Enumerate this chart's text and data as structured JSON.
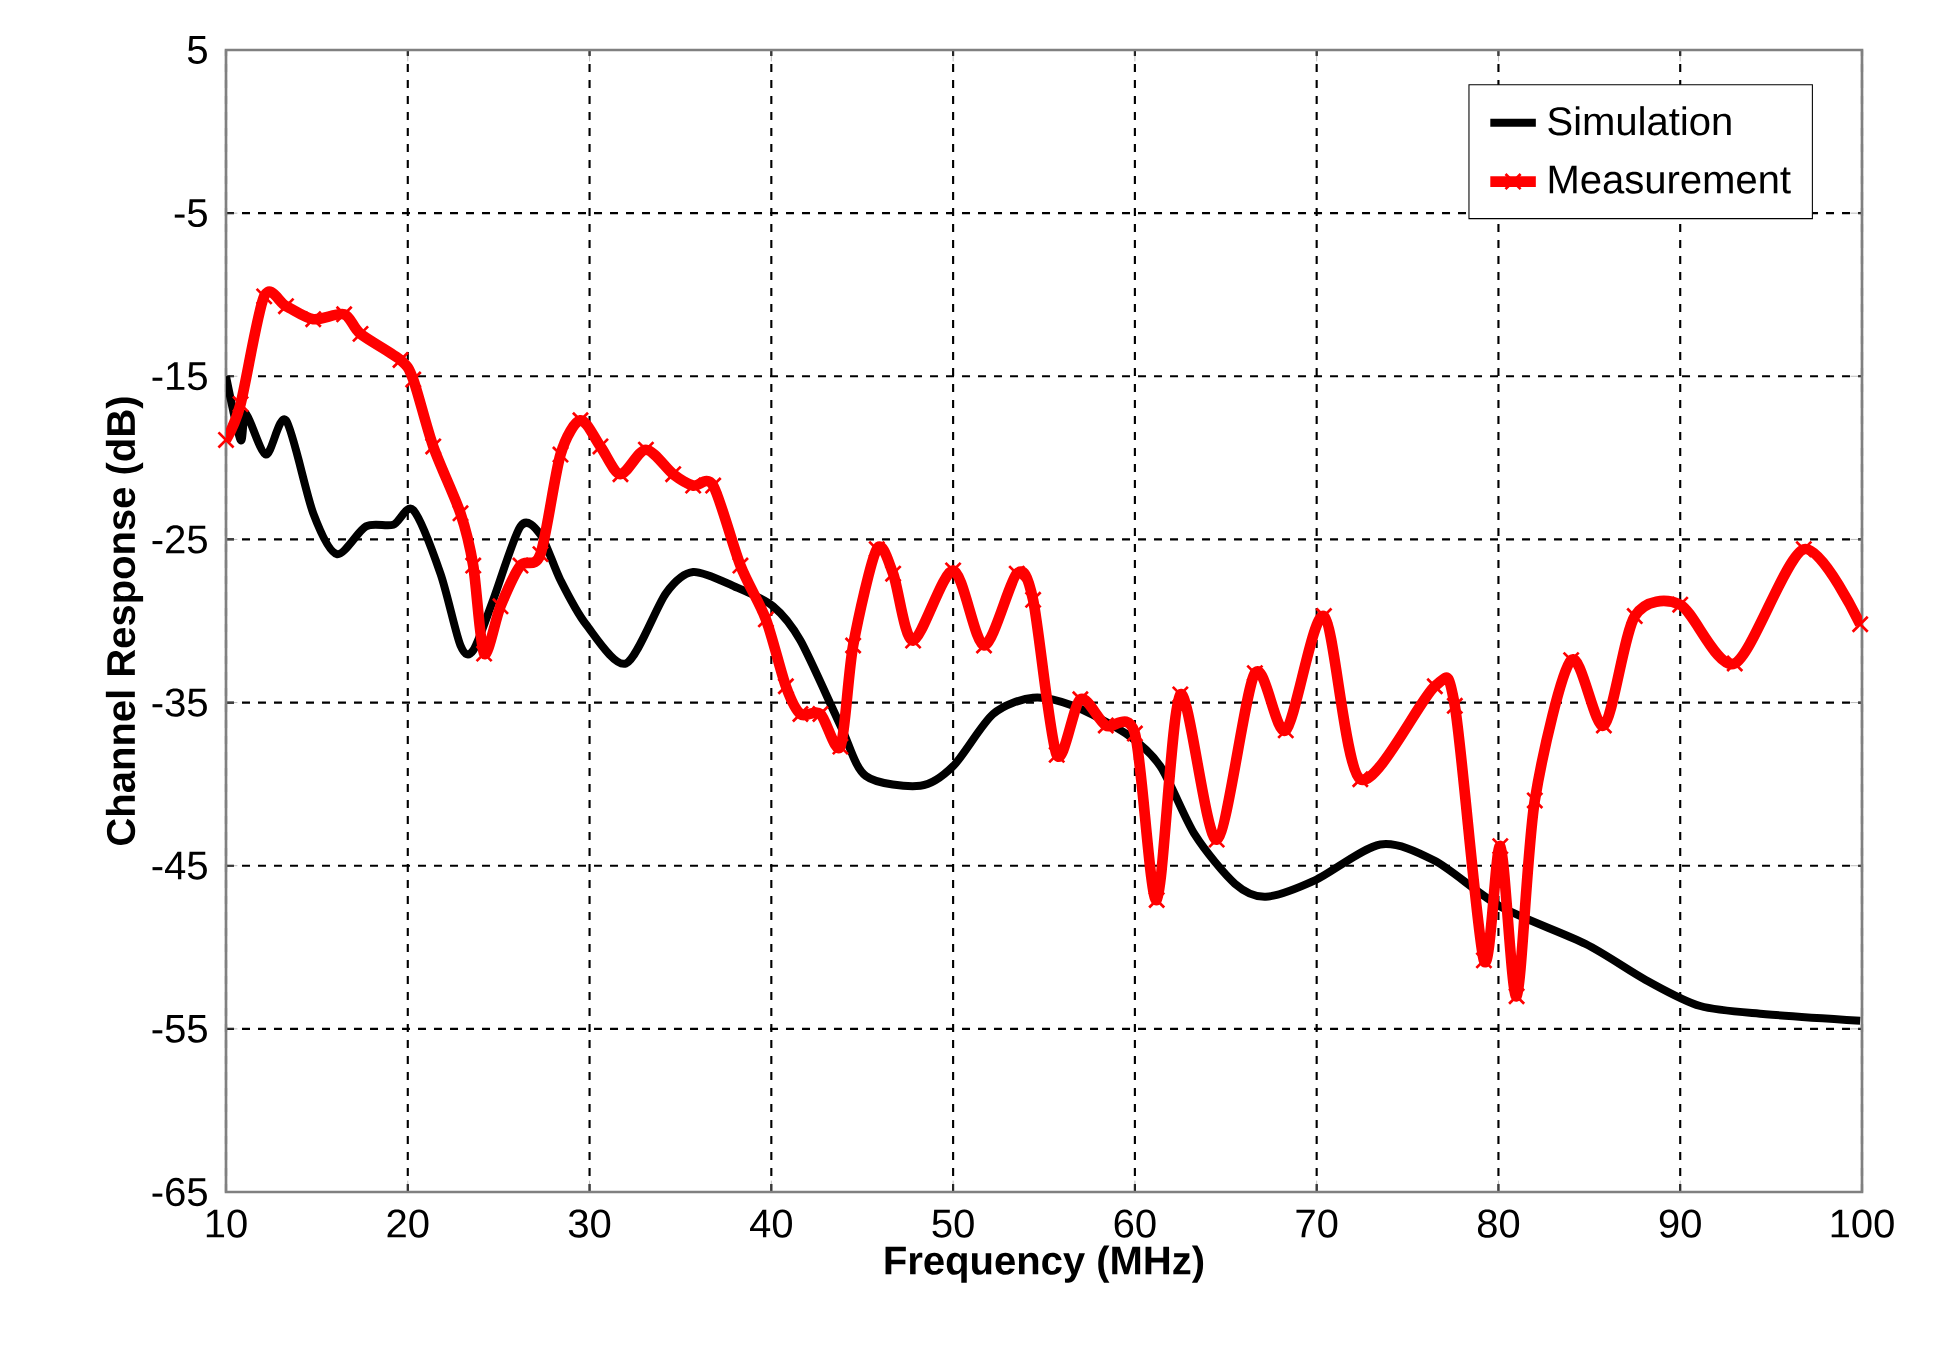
{
  "chart_data": {
    "type": "line",
    "xlabel": "Frequency  (MHz)",
    "ylabel": "Channel Response  (dB)",
    "xlim": [
      10,
      100
    ],
    "ylim": [
      -65,
      5
    ],
    "xticks": [
      10,
      20,
      30,
      40,
      50,
      60,
      70,
      80,
      90,
      100
    ],
    "yticks": [
      -65,
      -55,
      -45,
      -35,
      -25,
      -15,
      -5,
      5
    ],
    "grid": true,
    "legend": "top right",
    "line_style": "solid",
    "series": [
      {
        "name": "Simulation",
        "color": "#000000",
        "marker": "none",
        "x": [
          10,
          10.8,
          11.1,
          12.2,
          13.3,
          14.8,
          16.1,
          17.7,
          19.2,
          20.3,
          21.8,
          22.9,
          23.6,
          24.7,
          26.2,
          27.3,
          28.4,
          29.8,
          32,
          34.2,
          35.7,
          38,
          40.1,
          41.6,
          43.8,
          45.2,
          48.2,
          50,
          52.2,
          54.4,
          56.6,
          59.5,
          61.4,
          63.3,
          65.5,
          67.2,
          69.9,
          73.5,
          76.5,
          80.1,
          84.8,
          88.1,
          91.1,
          94.7,
          99.9
        ],
        "values": [
          -15,
          -18.9,
          -17.3,
          -19.8,
          -17.7,
          -23.4,
          -25.9,
          -24.2,
          -24.1,
          -23.2,
          -27.1,
          -31.5,
          -31.8,
          -28.7,
          -24.2,
          -24.7,
          -27.5,
          -30.2,
          -32.6,
          -28.3,
          -27,
          -27.9,
          -29.1,
          -31.2,
          -36.4,
          -39.5,
          -40.1,
          -38.9,
          -35.7,
          -34.7,
          -35.2,
          -36.9,
          -38.9,
          -43.1,
          -46.1,
          -46.9,
          -45.9,
          -43.7,
          -44.7,
          -47.5,
          -49.8,
          -52,
          -53.6,
          -54.1,
          -54.5
        ]
      },
      {
        "name": "Measurement",
        "color": "#ff0000",
        "marker": "cross",
        "x": [
          10,
          10.8,
          12.1,
          13.3,
          14.8,
          16.5,
          17.4,
          19.6,
          20.3,
          21.4,
          22.9,
          23.6,
          24.2,
          25.1,
          26.2,
          27.3,
          28.4,
          29.5,
          30.6,
          31.7,
          33.1,
          34.6,
          35.7,
          36.8,
          38.3,
          39.7,
          40.8,
          41.6,
          42.7,
          43.8,
          44.5,
          45.8,
          46.7,
          47.8,
          50,
          51.7,
          53.5,
          54.4,
          55.7,
          57,
          58.4,
          60,
          61.2,
          62.5,
          64.5,
          66.6,
          68.3,
          70.4,
          72.4,
          76.5,
          77.6,
          79.2,
          80.1,
          81,
          82,
          84,
          85.8,
          87.5,
          90,
          93,
          96.8,
          99.9
        ],
        "values": [
          -18.9,
          -16.7,
          -10.1,
          -10.7,
          -11.5,
          -11.2,
          -12.4,
          -14,
          -15.2,
          -19.3,
          -23.4,
          -26.6,
          -32,
          -29.1,
          -26.6,
          -25.9,
          -19.8,
          -17.7,
          -19.3,
          -21,
          -19.5,
          -21,
          -21.7,
          -21.7,
          -26.6,
          -29.9,
          -34,
          -35.7,
          -35.7,
          -37.7,
          -31.5,
          -25.6,
          -27.1,
          -31.2,
          -26.9,
          -31.5,
          -27.1,
          -28.7,
          -38.2,
          -34.8,
          -36.4,
          -36.9,
          -47.1,
          -34.5,
          -43.4,
          -33.2,
          -36.7,
          -29.7,
          -39.7,
          -34,
          -35.2,
          -50.8,
          -43.8,
          -53,
          -41,
          -32.4,
          -36.4,
          -29.7,
          -29,
          -32.6,
          -25.6,
          -30.2
        ]
      }
    ]
  }
}
